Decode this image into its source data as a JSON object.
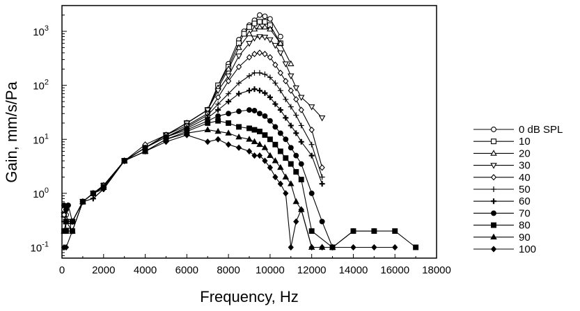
{
  "chart_data": {
    "type": "line",
    "xlabel": "Frequency, Hz",
    "ylabel": "Gain, mm/s/Pa",
    "xlim": [
      0,
      18000
    ],
    "ylim": [
      0.0631,
      3000
    ],
    "y_scale": "log",
    "x_ticks": [
      "0",
      "2000",
      "4000",
      "6000",
      "8000",
      "10000",
      "12000",
      "14000",
      "16000",
      "18000"
    ],
    "y_ticks": [
      {
        "base": "10",
        "exp": "-1"
      },
      {
        "base": "10",
        "exp": "0"
      },
      {
        "base": "10",
        "exp": "1"
      },
      {
        "base": "10",
        "exp": "2"
      },
      {
        "base": "10",
        "exp": "3"
      }
    ],
    "grid": false,
    "legend_position": "right",
    "series": [
      {
        "name": "0 dB SPL",
        "marker": "circle-open",
        "points": [
          [
            100,
            0.5
          ],
          [
            200,
            0.4
          ],
          [
            300,
            0.3
          ],
          [
            500,
            0.3
          ],
          [
            1000,
            0.7
          ],
          [
            1500,
            1.0
          ],
          [
            2000,
            1.4
          ],
          [
            3000,
            4
          ],
          [
            4000,
            7
          ],
          [
            5000,
            12
          ],
          [
            6000,
            20
          ],
          [
            7000,
            35
          ],
          [
            7500,
            100
          ],
          [
            8000,
            250
          ],
          [
            8500,
            700
          ],
          [
            8750,
            1000
          ],
          [
            9000,
            1300
          ],
          [
            9250,
            1600
          ],
          [
            9500,
            2000
          ],
          [
            9750,
            1900
          ],
          [
            10000,
            1700
          ],
          [
            10500,
            800
          ]
        ]
      },
      {
        "name": "10",
        "marker": "square-open",
        "points": [
          [
            100,
            0.4
          ],
          [
            200,
            0.3
          ],
          [
            300,
            0.25
          ],
          [
            500,
            0.3
          ],
          [
            1000,
            0.7
          ],
          [
            1500,
            1.0
          ],
          [
            2000,
            1.4
          ],
          [
            3000,
            4
          ],
          [
            4000,
            7
          ],
          [
            5000,
            12
          ],
          [
            6000,
            20
          ],
          [
            7000,
            35
          ],
          [
            7500,
            100
          ],
          [
            8000,
            220
          ],
          [
            8500,
            600
          ],
          [
            8750,
            900
          ],
          [
            9000,
            1200
          ],
          [
            9250,
            1400
          ],
          [
            9500,
            1500
          ],
          [
            9750,
            1500
          ],
          [
            10000,
            1300
          ],
          [
            10500,
            600
          ]
        ]
      },
      {
        "name": "20",
        "marker": "triangle-up-open",
        "points": [
          [
            100,
            0.4
          ],
          [
            200,
            0.3
          ],
          [
            500,
            0.3
          ],
          [
            1000,
            0.7
          ],
          [
            1500,
            1.0
          ],
          [
            2000,
            1.4
          ],
          [
            3000,
            4
          ],
          [
            4000,
            7
          ],
          [
            5000,
            12
          ],
          [
            6000,
            20
          ],
          [
            7000,
            35
          ],
          [
            7500,
            90
          ],
          [
            8000,
            200
          ],
          [
            8500,
            500
          ],
          [
            9000,
            900
          ],
          [
            9250,
            1100
          ],
          [
            9500,
            1200
          ],
          [
            9750,
            1200
          ],
          [
            10000,
            1100
          ],
          [
            10500,
            600
          ],
          [
            11000,
            250
          ]
        ]
      },
      {
        "name": "30",
        "marker": "triangle-down-open",
        "points": [
          [
            100,
            0.4
          ],
          [
            200,
            0.3
          ],
          [
            500,
            0.3
          ],
          [
            1000,
            0.7
          ],
          [
            1500,
            1.0
          ],
          [
            2000,
            1.4
          ],
          [
            3000,
            4
          ],
          [
            4000,
            7
          ],
          [
            5000,
            12
          ],
          [
            6000,
            20
          ],
          [
            7000,
            35
          ],
          [
            7500,
            80
          ],
          [
            8000,
            150
          ],
          [
            8500,
            350
          ],
          [
            9000,
            600
          ],
          [
            9250,
            750
          ],
          [
            9500,
            800
          ],
          [
            9750,
            780
          ],
          [
            10000,
            700
          ],
          [
            10250,
            550
          ],
          [
            10500,
            400
          ],
          [
            10750,
            250
          ],
          [
            11000,
            150
          ],
          [
            11250,
            90
          ],
          [
            11500,
            60
          ],
          [
            12000,
            40
          ],
          [
            12500,
            25
          ]
        ]
      },
      {
        "name": "40",
        "marker": "diamond-open",
        "points": [
          [
            100,
            0.4
          ],
          [
            200,
            0.3
          ],
          [
            500,
            0.3
          ],
          [
            1000,
            0.7
          ],
          [
            1500,
            1.0
          ],
          [
            2000,
            1.4
          ],
          [
            3000,
            4
          ],
          [
            4000,
            8
          ],
          [
            5000,
            12
          ],
          [
            6000,
            18
          ],
          [
            7000,
            30
          ],
          [
            7500,
            60
          ],
          [
            8000,
            120
          ],
          [
            8500,
            220
          ],
          [
            9000,
            330
          ],
          [
            9250,
            380
          ],
          [
            9500,
            400
          ],
          [
            9750,
            380
          ],
          [
            10000,
            330
          ],
          [
            10250,
            240
          ],
          [
            10500,
            170
          ],
          [
            10750,
            120
          ],
          [
            11000,
            80
          ],
          [
            11250,
            55
          ],
          [
            11500,
            35
          ],
          [
            12000,
            15
          ],
          [
            12500,
            3
          ]
        ]
      },
      {
        "name": "50",
        "marker": "plus",
        "points": [
          [
            100,
            0.3
          ],
          [
            200,
            0.3
          ],
          [
            500,
            0.3
          ],
          [
            1000,
            0.7
          ],
          [
            1500,
            0.8
          ],
          [
            2000,
            1.2
          ],
          [
            3000,
            4
          ],
          [
            4000,
            7
          ],
          [
            5000,
            11
          ],
          [
            6000,
            17
          ],
          [
            7000,
            28
          ],
          [
            7500,
            45
          ],
          [
            8000,
            70
          ],
          [
            8500,
            110
          ],
          [
            9000,
            150
          ],
          [
            9250,
            170
          ],
          [
            9500,
            170
          ],
          [
            9750,
            160
          ],
          [
            10000,
            140
          ],
          [
            10250,
            110
          ],
          [
            10500,
            80
          ],
          [
            10750,
            55
          ],
          [
            11000,
            40
          ],
          [
            11250,
            28
          ],
          [
            11500,
            18
          ],
          [
            12000,
            8
          ],
          [
            12500,
            2
          ]
        ]
      },
      {
        "name": "60",
        "marker": "plus-bold",
        "points": [
          [
            100,
            0.3
          ],
          [
            200,
            0.3
          ],
          [
            500,
            0.3
          ],
          [
            1000,
            0.7
          ],
          [
            1500,
            0.8
          ],
          [
            2000,
            1.2
          ],
          [
            3000,
            4
          ],
          [
            4000,
            7
          ],
          [
            5000,
            11
          ],
          [
            6000,
            16
          ],
          [
            7000,
            25
          ],
          [
            7500,
            35
          ],
          [
            8000,
            50
          ],
          [
            8500,
            70
          ],
          [
            9000,
            80
          ],
          [
            9250,
            85
          ],
          [
            9500,
            80
          ],
          [
            9750,
            72
          ],
          [
            10000,
            60
          ],
          [
            10250,
            45
          ],
          [
            10500,
            35
          ],
          [
            10750,
            25
          ],
          [
            11000,
            18
          ],
          [
            11250,
            13
          ],
          [
            11500,
            9
          ],
          [
            12000,
            5
          ],
          [
            12500,
            1.5
          ]
        ]
      },
      {
        "name": "70",
        "marker": "circle-filled",
        "points": [
          [
            100,
            0.6
          ],
          [
            200,
            0.5
          ],
          [
            300,
            0.6
          ],
          [
            500,
            0.3
          ],
          [
            1000,
            0.7
          ],
          [
            1500,
            1.0
          ],
          [
            2000,
            1.3
          ],
          [
            3000,
            4
          ],
          [
            4000,
            7
          ],
          [
            5000,
            11
          ],
          [
            6000,
            15
          ],
          [
            7000,
            22
          ],
          [
            7500,
            27
          ],
          [
            8000,
            30
          ],
          [
            8500,
            33
          ],
          [
            9000,
            35
          ],
          [
            9250,
            34
          ],
          [
            9500,
            30
          ],
          [
            9750,
            27
          ],
          [
            10000,
            22
          ],
          [
            10250,
            17
          ],
          [
            10500,
            13
          ],
          [
            10750,
            10
          ],
          [
            11000,
            7
          ],
          [
            11250,
            5
          ],
          [
            11500,
            3.5
          ],
          [
            12000,
            1
          ],
          [
            12500,
            0.3
          ],
          [
            13000,
            0.1
          ],
          [
            14000,
            0.2
          ],
          [
            15000,
            0.2
          ]
        ]
      },
      {
        "name": "80",
        "marker": "square-filled",
        "points": [
          [
            100,
            0.2
          ],
          [
            200,
            0.2
          ],
          [
            500,
            0.2
          ],
          [
            1000,
            0.7
          ],
          [
            1500,
            1.0
          ],
          [
            2000,
            1.3
          ],
          [
            3000,
            4
          ],
          [
            4000,
            6
          ],
          [
            5000,
            10
          ],
          [
            6000,
            14
          ],
          [
            7000,
            20
          ],
          [
            7500,
            22
          ],
          [
            8000,
            20
          ],
          [
            8500,
            17
          ],
          [
            9000,
            16
          ],
          [
            9250,
            15
          ],
          [
            9500,
            14
          ],
          [
            9750,
            12
          ],
          [
            10000,
            10
          ],
          [
            10250,
            8
          ],
          [
            10500,
            6
          ],
          [
            10750,
            4.5
          ],
          [
            11000,
            3.5
          ],
          [
            11250,
            2.5
          ],
          [
            11500,
            1.8
          ],
          [
            12000,
            0.2
          ],
          [
            13000,
            0.1
          ],
          [
            14000,
            0.2
          ],
          [
            15000,
            0.2
          ],
          [
            16000,
            0.2
          ],
          [
            17000,
            0.1
          ]
        ]
      },
      {
        "name": "90",
        "marker": "triangle-up-filled",
        "points": [
          [
            100,
            0.2
          ],
          [
            200,
            0.3
          ],
          [
            500,
            0.2
          ],
          [
            1000,
            0.7
          ],
          [
            1500,
            1.0
          ],
          [
            2000,
            1.3
          ],
          [
            3000,
            4
          ],
          [
            4000,
            6
          ],
          [
            5000,
            10
          ],
          [
            6000,
            13
          ],
          [
            7000,
            15
          ],
          [
            7500,
            14
          ],
          [
            8000,
            13
          ],
          [
            8500,
            11
          ],
          [
            9000,
            10
          ],
          [
            9250,
            9
          ],
          [
            9500,
            8
          ],
          [
            9750,
            7
          ],
          [
            10000,
            5
          ],
          [
            10250,
            4
          ],
          [
            10500,
            3
          ],
          [
            10750,
            2
          ],
          [
            11000,
            1.5
          ],
          [
            11250,
            0.7
          ],
          [
            11500,
            0.5
          ],
          [
            12000,
            0.1
          ],
          [
            12500,
            0.1
          ],
          [
            13000,
            0.1
          ]
        ]
      },
      {
        "name": "100",
        "marker": "diamond-filled",
        "points": [
          [
            100,
            0.1
          ],
          [
            200,
            0.1
          ],
          [
            500,
            0.2
          ],
          [
            1000,
            0.7
          ],
          [
            1500,
            1.0
          ],
          [
            2000,
            1.2
          ],
          [
            3000,
            4
          ],
          [
            4000,
            6
          ],
          [
            5000,
            9
          ],
          [
            6000,
            12
          ],
          [
            7000,
            9
          ],
          [
            7500,
            10
          ],
          [
            8000,
            8
          ],
          [
            8500,
            7
          ],
          [
            9000,
            6
          ],
          [
            9250,
            5
          ],
          [
            9500,
            5
          ],
          [
            9750,
            4
          ],
          [
            10000,
            3
          ],
          [
            10250,
            2
          ],
          [
            10500,
            1.5
          ],
          [
            10750,
            1
          ],
          [
            11000,
            0.1
          ],
          [
            11250,
            0.3
          ],
          [
            11500,
            0.5
          ],
          [
            12000,
            0.1
          ],
          [
            12500,
            0.1
          ],
          [
            13000,
            0.1
          ],
          [
            14000,
            0.1
          ],
          [
            15000,
            0.1
          ],
          [
            16000,
            0.1
          ]
        ]
      }
    ]
  }
}
